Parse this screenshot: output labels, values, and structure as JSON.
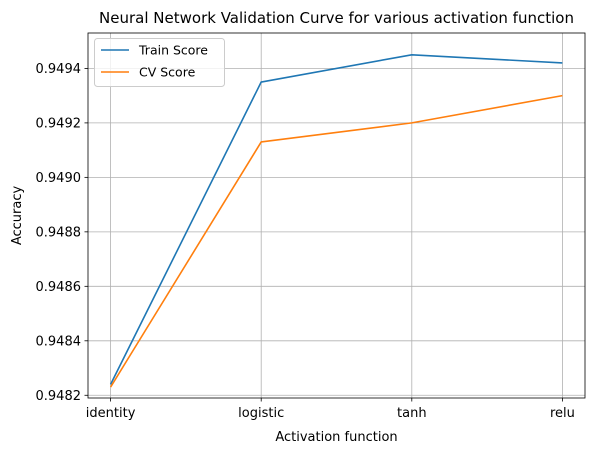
{
  "chart_data": {
    "type": "line",
    "title": "Neural Network Validation Curve for various activation function",
    "xlabel": "Activation function",
    "ylabel": "Accuracy",
    "categories": [
      "identity",
      "logistic",
      "tanh",
      "relu"
    ],
    "series": [
      {
        "name": "Train Score",
        "color": "#1f77b4",
        "values": [
          0.94824,
          0.94935,
          0.94945,
          0.94942
        ]
      },
      {
        "name": "CV Score",
        "color": "#ff7f0e",
        "values": [
          0.94823,
          0.94913,
          0.9492,
          0.9493
        ]
      }
    ],
    "ylim": [
      0.94819,
      0.94953
    ],
    "yticks": [
      "0.9482",
      "0.9484",
      "0.9486",
      "0.9488",
      "0.9490",
      "0.9492",
      "0.9494"
    ],
    "ytick_values": [
      0.9482,
      0.9484,
      0.9486,
      0.9488,
      0.949,
      0.9492,
      0.9494
    ],
    "grid": true,
    "legend_position": "top-left"
  }
}
